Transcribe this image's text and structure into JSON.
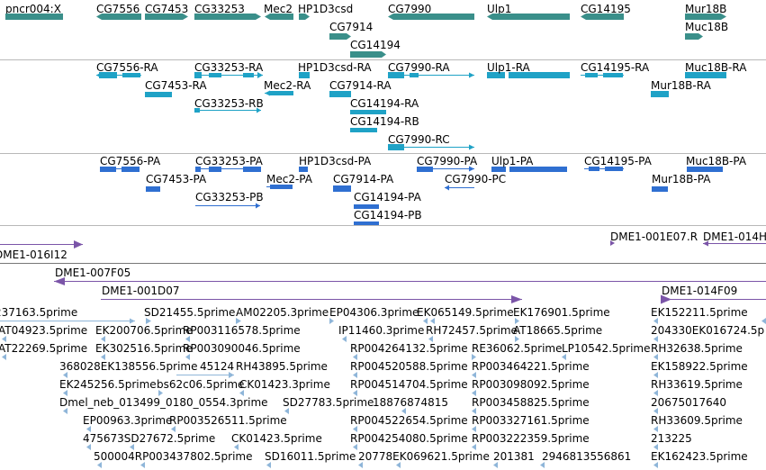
{
  "colors": {
    "gene": "#3a8f8a",
    "transcript": "#1fa2c6",
    "protein": "#2f6fd1",
    "clone": "#7b55a8",
    "est": "#8fb6d9",
    "separator": "#b8b8b8",
    "rule": "#777777"
  },
  "tracks": {
    "genes": {
      "items": [
        {
          "label": "pncr004:X"
        },
        {
          "label": "CG7556"
        },
        {
          "label": "CG7453"
        },
        {
          "label": "CG33253"
        },
        {
          "label": "Mec2"
        },
        {
          "label": "HP1D3csd"
        },
        {
          "label": "CG7914"
        },
        {
          "label": "CG14194"
        },
        {
          "label": "CG7990"
        },
        {
          "label": "Ulp1"
        },
        {
          "label": "CG14195"
        },
        {
          "label": "Mur18B"
        },
        {
          "label": "Muc18B"
        }
      ]
    },
    "transcripts": {
      "items": [
        {
          "label": "CG7556-RA"
        },
        {
          "label": "CG7453-RA"
        },
        {
          "label": "CG33253-RA"
        },
        {
          "label": "CG33253-RB"
        },
        {
          "label": "Mec2-RA"
        },
        {
          "label": "HP1D3csd-RA"
        },
        {
          "label": "CG7914-RA"
        },
        {
          "label": "CG14194-RA"
        },
        {
          "label": "CG14194-RB"
        },
        {
          "label": "CG7990-RA"
        },
        {
          "label": "CG7990-RC"
        },
        {
          "label": "Ulp1-RA"
        },
        {
          "label": "CG14195-RA"
        },
        {
          "label": "Muc18B-RA"
        },
        {
          "label": "Mur18B-RA"
        }
      ]
    },
    "proteins": {
      "items": [
        {
          "label": "CG7556-PA"
        },
        {
          "label": "CG7453-PA"
        },
        {
          "label": "CG33253-PA"
        },
        {
          "label": "CG33253-PB"
        },
        {
          "label": "Mec2-PA"
        },
        {
          "label": "HP1D3csd-PA"
        },
        {
          "label": "CG7914-PA"
        },
        {
          "label": "CG14194-PA"
        },
        {
          "label": "CG14194-PB"
        },
        {
          "label": "CG7990-PA"
        },
        {
          "label": "CG7990-PC"
        },
        {
          "label": "Ulp1-PA"
        },
        {
          "label": "CG14195-PA"
        },
        {
          "label": "Muc18B-PA"
        },
        {
          "label": "Mur18B-PA"
        }
      ]
    },
    "clones": {
      "items": [
        {
          "label": "DME1-001E07.R"
        },
        {
          "label": "DME1-014H"
        },
        {
          "label": "DME1-016I12"
        },
        {
          "label": "DME1-007F05"
        },
        {
          "label": "DME1-001D07"
        },
        {
          "label": "DME1-014F09"
        }
      ]
    },
    "ests": {
      "items": [
        {
          "label": "237163.5prime"
        },
        {
          "label": "SD21455.5prime"
        },
        {
          "label": "AM02205.3prime"
        },
        {
          "label": "EP04306.3prime"
        },
        {
          "label": "EK065149.5prime"
        },
        {
          "label": "EK176901.5prime"
        },
        {
          "label": "EK152211.5prime"
        },
        {
          "label": "AT04923.5prime"
        },
        {
          "label": "EK200706.5prime"
        },
        {
          "label": "RP003116578.5prime"
        },
        {
          "label": "IP11460.3prime"
        },
        {
          "label": "RH72457.5prime"
        },
        {
          "label": "AT18665.5prime"
        },
        {
          "label": "204330EK016724.5p"
        },
        {
          "label": "AT22269.5prime"
        },
        {
          "label": "EK302516.5prime"
        },
        {
          "label": "RP003090046.5prime"
        },
        {
          "label": "RP004264132.5prime"
        },
        {
          "label": "RE36062.5prime"
        },
        {
          "label": "LP10542.5prime"
        },
        {
          "label": "RH32638.5prime"
        },
        {
          "label": "368028EK138556.5prime"
        },
        {
          "label": "45124"
        },
        {
          "label": "RH43895.5prime"
        },
        {
          "label": "RP004520588.5prime"
        },
        {
          "label": "RP003464221.5prime"
        },
        {
          "label": "EK158922.5prime"
        },
        {
          "label": "EK245256.5prime"
        },
        {
          "label": "bs62c06.5prime"
        },
        {
          "label": "CK01423.3prime"
        },
        {
          "label": "RP004514704.5prime"
        },
        {
          "label": "RP003098092.5prime"
        },
        {
          "label": "RH33619.5prime"
        },
        {
          "label": "Dmel_neb_013499_0180_0554.3prime"
        },
        {
          "label": "SD27783.5prime"
        },
        {
          "label": "18876874815"
        },
        {
          "label": "RP003458825.5prime"
        },
        {
          "label": "20675017640"
        },
        {
          "label": "EP00963.3prime"
        },
        {
          "label": "RP003526511.5prime"
        },
        {
          "label": "RP004522654.5prime"
        },
        {
          "label": "RP003327161.5prime"
        },
        {
          "label": "RH33609.5prime"
        },
        {
          "label": "475673SD27672.5prime"
        },
        {
          "label": "CK01423.5prime"
        },
        {
          "label": "RP004254080.5prime"
        },
        {
          "label": "RP003222359.5prime"
        },
        {
          "label": "213225"
        },
        {
          "label": "500004RP003437802.5prime"
        },
        {
          "label": "SD16011.5prime"
        },
        {
          "label": "20778EK069621.5prime"
        },
        {
          "label": "201381"
        },
        {
          "label": "2946813556861"
        },
        {
          "label": "EK162423.5prime"
        }
      ]
    }
  }
}
